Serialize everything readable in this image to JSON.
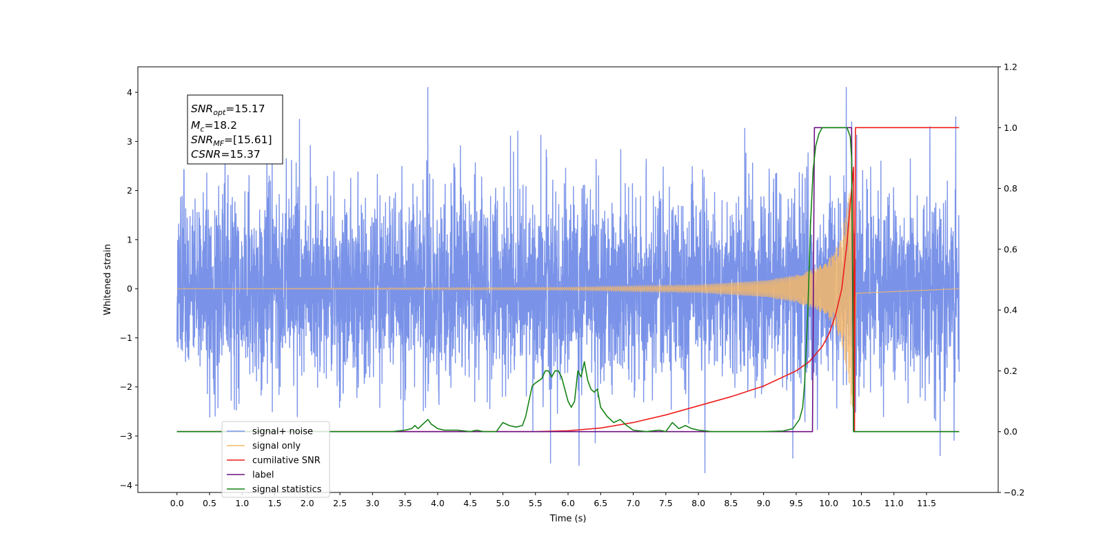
{
  "chart_data": {
    "type": "line",
    "title": "",
    "xlabel": "Time (s)",
    "ylabel": "Whitened strain",
    "xlim": [
      -0.6,
      12.6
    ],
    "ylim": [
      -4.15,
      4.52
    ],
    "y2lim": [
      -0.2,
      1.2
    ],
    "x_ticks": [
      0.0,
      0.5,
      1.0,
      1.5,
      2.0,
      2.5,
      3.0,
      3.5,
      4.0,
      4.5,
      5.0,
      5.5,
      6.0,
      6.5,
      7.0,
      7.5,
      8.0,
      8.5,
      9.0,
      9.5,
      10.0,
      10.5,
      11.0,
      11.5
    ],
    "x_tick_labels": [
      "0.0",
      "0.5",
      "1.0",
      "1.5",
      "2.0",
      "2.5",
      "3.0",
      "3.5",
      "4.0",
      "4.5",
      "5.0",
      "5.5",
      "6.0",
      "6.5",
      "7.0",
      "7.5",
      "8.0",
      "8.5",
      "9.0",
      "9.5",
      "10.0",
      "10.5",
      "11.0",
      "11.5"
    ],
    "y_ticks": [
      4,
      3,
      2,
      1,
      0,
      -1,
      -2,
      -3,
      -4
    ],
    "y_tick_labels": [
      "4",
      "3",
      "2",
      "1",
      "0",
      "−1",
      "−2",
      "−3",
      "−4"
    ],
    "y2_ticks": [
      1.2,
      1.0,
      0.8,
      0.6,
      0.4,
      0.2,
      0.0,
      -0.2
    ],
    "y2_tick_labels": [
      "1.2",
      "1.0",
      "0.8",
      "0.6",
      "0.4",
      "0.2",
      "0.0",
      "−0.2"
    ],
    "grid": false,
    "legend_position": "lower-left",
    "annotation": {
      "snr_opt_base": "SNR",
      "snr_opt_sub": "opt",
      "snr_opt_value": "=15.17",
      "mc_base": "M",
      "mc_sub": "c",
      "mc_value": "=18.2",
      "snr_mf_base": "SNR",
      "snr_mf_sub": "MF",
      "snr_mf_value": "=[15.61]",
      "csnr_base": "CSNR",
      "csnr_value": "=15.37"
    },
    "series": [
      {
        "name": "signal+ noise",
        "color": "#7a93e8",
        "axis": "left",
        "kind": "noise",
        "x_range": [
          0.0,
          12.0
        ],
        "sigma": 1.0,
        "spike_max": 4.1,
        "notable_points": [
          [
            1.88,
            3.45
          ],
          [
            3.85,
            4.1
          ],
          [
            10.27,
            4.1
          ],
          [
            11.55,
            3.3
          ],
          [
            11.95,
            3.5
          ],
          [
            5.73,
            -3.55
          ],
          [
            6.17,
            -3.6
          ],
          [
            8.1,
            -3.75
          ],
          [
            9.45,
            -3.45
          ]
        ]
      },
      {
        "name": "signal only",
        "color": "#f5b76a",
        "axis": "left",
        "kind": "chirp",
        "x_range": [
          0.0,
          12.0
        ],
        "merger_time": 10.38,
        "envelope": [
          [
            0.0,
            0.0
          ],
          [
            6.0,
            0.03
          ],
          [
            8.0,
            0.08
          ],
          [
            9.0,
            0.17
          ],
          [
            9.5,
            0.28
          ],
          [
            9.8,
            0.42
          ],
          [
            10.0,
            0.62
          ],
          [
            10.1,
            0.8
          ],
          [
            10.2,
            1.15
          ],
          [
            10.3,
            1.9
          ],
          [
            10.35,
            2.5
          ],
          [
            10.38,
            2.7
          ],
          [
            10.42,
            0.1
          ],
          [
            12.0,
            0.0
          ]
        ]
      },
      {
        "name": "cumilative SNR",
        "color": "#ee1b1b",
        "axis": "right",
        "points": [
          [
            0.0,
            0.0
          ],
          [
            5.5,
            0.0
          ],
          [
            6.0,
            0.003
          ],
          [
            6.5,
            0.012
          ],
          [
            7.0,
            0.03
          ],
          [
            7.5,
            0.055
          ],
          [
            8.0,
            0.085
          ],
          [
            8.5,
            0.115
          ],
          [
            9.0,
            0.15
          ],
          [
            9.5,
            0.2
          ],
          [
            9.7,
            0.23
          ],
          [
            9.9,
            0.28
          ],
          [
            10.0,
            0.32
          ],
          [
            10.1,
            0.38
          ],
          [
            10.2,
            0.47
          ],
          [
            10.28,
            0.62
          ],
          [
            10.33,
            0.75
          ],
          [
            10.36,
            0.82
          ],
          [
            10.38,
            0.87
          ],
          [
            10.395,
            0.0
          ],
          [
            10.41,
            1.0
          ],
          [
            12.0,
            1.0
          ]
        ]
      },
      {
        "name": "label",
        "color": "#6b0f82",
        "axis": "right",
        "points": [
          [
            0.0,
            0.0
          ],
          [
            9.75,
            0.0
          ],
          [
            9.78,
            1.0
          ],
          [
            10.35,
            1.0
          ],
          [
            10.38,
            0.0
          ],
          [
            12.0,
            0.0
          ]
        ]
      },
      {
        "name": "signal statistics",
        "color": "#128212",
        "axis": "right",
        "points": [
          [
            0.0,
            0.0
          ],
          [
            2.8,
            0.0
          ],
          [
            3.0,
            0.0
          ],
          [
            3.3,
            0.0
          ],
          [
            3.5,
            0.005
          ],
          [
            3.6,
            0.01
          ],
          [
            3.65,
            0.02
          ],
          [
            3.7,
            0.01
          ],
          [
            3.75,
            0.02
          ],
          [
            3.8,
            0.03
          ],
          [
            3.85,
            0.04
          ],
          [
            3.9,
            0.025
          ],
          [
            4.0,
            0.01
          ],
          [
            4.1,
            0.005
          ],
          [
            4.3,
            0.005
          ],
          [
            4.5,
            0.0
          ],
          [
            4.6,
            0.005
          ],
          [
            4.7,
            0.0
          ],
          [
            4.9,
            0.0
          ],
          [
            5.0,
            0.03
          ],
          [
            5.1,
            0.02
          ],
          [
            5.2,
            0.015
          ],
          [
            5.3,
            0.02
          ],
          [
            5.35,
            0.05
          ],
          [
            5.45,
            0.15
          ],
          [
            5.5,
            0.16
          ],
          [
            5.6,
            0.175
          ],
          [
            5.65,
            0.2
          ],
          [
            5.7,
            0.2
          ],
          [
            5.75,
            0.18
          ],
          [
            5.8,
            0.2
          ],
          [
            5.85,
            0.2
          ],
          [
            5.9,
            0.18
          ],
          [
            6.0,
            0.1
          ],
          [
            6.05,
            0.08
          ],
          [
            6.1,
            0.1
          ],
          [
            6.15,
            0.2
          ],
          [
            6.2,
            0.18
          ],
          [
            6.25,
            0.23
          ],
          [
            6.3,
            0.17
          ],
          [
            6.35,
            0.14
          ],
          [
            6.4,
            0.13
          ],
          [
            6.45,
            0.14
          ],
          [
            6.5,
            0.08
          ],
          [
            6.6,
            0.05
          ],
          [
            6.7,
            0.03
          ],
          [
            6.8,
            0.04
          ],
          [
            6.9,
            0.02
          ],
          [
            7.0,
            0.005
          ],
          [
            7.2,
            0.0
          ],
          [
            7.4,
            0.005
          ],
          [
            7.5,
            0.0
          ],
          [
            7.6,
            0.03
          ],
          [
            7.7,
            0.01
          ],
          [
            7.8,
            0.02
          ],
          [
            7.9,
            0.01
          ],
          [
            8.0,
            0.005
          ],
          [
            8.2,
            0.0
          ],
          [
            9.0,
            0.0
          ],
          [
            9.3,
            0.002
          ],
          [
            9.45,
            0.01
          ],
          [
            9.55,
            0.04
          ],
          [
            9.6,
            0.08
          ],
          [
            9.63,
            0.16
          ],
          [
            9.68,
            0.4
          ],
          [
            9.72,
            0.68
          ],
          [
            9.76,
            0.86
          ],
          [
            9.8,
            0.94
          ],
          [
            9.85,
            0.98
          ],
          [
            9.9,
            1.0
          ],
          [
            10.2,
            1.0
          ],
          [
            10.28,
            1.0
          ],
          [
            10.33,
            0.97
          ],
          [
            10.35,
            0.9
          ],
          [
            10.37,
            0.5
          ],
          [
            10.38,
            0.0
          ],
          [
            10.42,
            0.0
          ],
          [
            12.0,
            0.0
          ]
        ]
      }
    ]
  }
}
